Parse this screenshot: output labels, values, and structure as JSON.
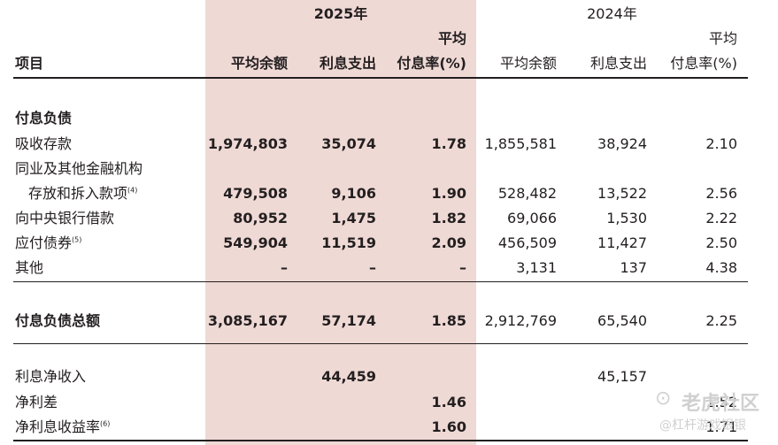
{
  "header": {
    "year_2025": "2025年",
    "year_2024": "2024年",
    "col_item": "项目",
    "col_avg_balance": "平均余额",
    "col_interest_expense": "利息支出",
    "col_rate_line1": "平均",
    "col_rate_line2": "付息率(%)"
  },
  "rows": [
    {
      "label": "付息负债",
      "bold": true
    },
    {
      "label": "吸收存款",
      "v2025": [
        "1,974,803",
        "35,074",
        "1.78"
      ],
      "v2024": [
        "1,855,581",
        "38,924",
        "2.10"
      ]
    },
    {
      "label": "同业及其他金融机构"
    },
    {
      "label": "存放和拆入款项",
      "note": "(4)",
      "v2025": [
        "479,508",
        "9,106",
        "1.90"
      ],
      "v2024": [
        "528,482",
        "13,522",
        "2.56"
      ]
    },
    {
      "label": "向中央银行借款",
      "v2025": [
        "80,952",
        "1,475",
        "1.82"
      ],
      "v2024": [
        "69,066",
        "1,530",
        "2.22"
      ]
    },
    {
      "label": "应付债券",
      "note": "(5)",
      "v2025": [
        "549,904",
        "11,519",
        "2.09"
      ],
      "v2024": [
        "456,509",
        "11,427",
        "2.50"
      ]
    },
    {
      "label": "其他",
      "v2025": [
        "–",
        "–",
        "–"
      ],
      "v2024": [
        "3,131",
        "137",
        "4.38"
      ]
    },
    {
      "label": "付息负债总额",
      "bold": true,
      "v2025": [
        "3,085,167",
        "57,174",
        "1.85"
      ],
      "v2024": [
        "2,912,769",
        "65,540",
        "2.25"
      ]
    },
    {
      "label": "利息净收入",
      "v2025": [
        "",
        "44,459",
        ""
      ],
      "v2024": [
        "",
        "45,157",
        ""
      ]
    },
    {
      "label": "净利差",
      "v2025": [
        "",
        "",
        "1.46"
      ],
      "v2024": [
        "",
        "",
        "1.52"
      ]
    },
    {
      "label": "净利息收益率",
      "note": "(6)",
      "v2025": [
        "",
        "",
        "1.60"
      ],
      "v2024": [
        "",
        "",
        "1.71"
      ]
    }
  ],
  "watermark": {
    "line1": "老虎社区",
    "line2": "@杠杆游戏银银"
  }
}
